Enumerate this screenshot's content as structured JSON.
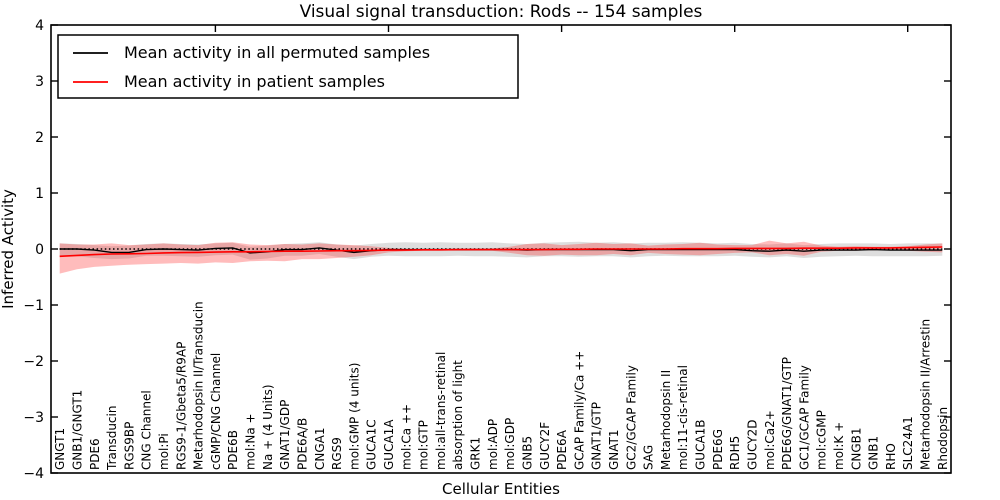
{
  "title": "Visual signal transduction: Rods -- 154 samples",
  "xlabel": "Cellular Entities",
  "ylabel": "Inferred Activity",
  "legend": {
    "items": [
      {
        "label": "Mean activity in all permuted samples",
        "color": "#000000"
      },
      {
        "label": "Mean activity in patient samples",
        "color": "#ff0000"
      }
    ]
  },
  "colors": {
    "permuted_line": "#000000",
    "patient_line": "#ff0000",
    "permuted_band": "#a0a0a0",
    "patient_band": "#ff2020",
    "reference_line": "#000000",
    "spine": "#000000",
    "background": "#ffffff"
  },
  "chart_data": {
    "type": "line",
    "title": "Visual signal transduction: Rods -- 154 samples",
    "xlabel": "Cellular Entities",
    "ylabel": "Inferred Activity",
    "ylim": [
      -4,
      4
    ],
    "yticks": [
      -4,
      -3,
      -2,
      -1,
      0,
      1,
      2,
      3,
      4
    ],
    "top_xticks": [
      10,
      20,
      30,
      40,
      50
    ],
    "grid": false,
    "legend_position": "upper left",
    "reference_line_y": 0,
    "categories": [
      "GNGT1",
      "GNB1/GNGT1",
      "PDE6",
      "Transducin",
      "RGS9BP",
      "CNG Channel",
      "mol:Pi",
      "RGS9-1/Gbeta5/R9AP",
      "Metarhodopsin II/Transducin",
      "cGMP/CNG Channel",
      "PDE6B",
      "mol:Na +",
      "Na + (4 Units)",
      "GNAT1/GDP",
      "PDE6A/B",
      "CNGA1",
      "RGS9",
      "mol:GMP (4 units)",
      "GUCA1C",
      "GUCA1A",
      "mol:Ca ++",
      "mol:GTP",
      "mol:all-trans-retinal",
      "absorption of light",
      "GRK1",
      "mol:ADP",
      "mol:GDP",
      "GNB5",
      "GUCY2F",
      "PDE6A",
      "GCAP Family/Ca ++",
      "GNAT1/GTP",
      "GNAT1",
      "GC2/GCAP Family",
      "SAG",
      "Metarhodopsin II",
      "mol:11-cis-retinal",
      "GUCA1B",
      "PDE6G",
      "RDH5",
      "GUCY2D",
      "mol:Ca2+",
      "PDE6G/GNAT1/GTP",
      "GC1/GCAP Family",
      "mol:cGMP",
      "mol:K +",
      "CNGB1",
      "GNB1",
      "RHO",
      "SLC24A1",
      "Metarhodopsin II/Arrestin",
      "Rhodopsin"
    ],
    "series": [
      {
        "name": "Mean activity in all permuted samples",
        "color": "#000000",
        "band_color": "#a0a0a0",
        "band_opacity": 0.35,
        "values": [
          0.0,
          0.0,
          -0.02,
          -0.06,
          -0.06,
          -0.01,
          0.0,
          -0.01,
          -0.02,
          0.01,
          0.02,
          -0.07,
          -0.05,
          -0.01,
          -0.01,
          0.02,
          -0.02,
          -0.06,
          -0.03,
          -0.01,
          -0.01,
          -0.01,
          -0.01,
          -0.01,
          -0.01,
          -0.01,
          -0.01,
          -0.02,
          -0.01,
          -0.01,
          -0.01,
          -0.01,
          -0.01,
          -0.03,
          -0.01,
          -0.01,
          -0.01,
          -0.01,
          -0.01,
          -0.01,
          -0.03,
          -0.04,
          -0.02,
          -0.04,
          -0.02,
          -0.02,
          -0.02,
          -0.01,
          -0.02,
          -0.02,
          -0.02,
          -0.02
        ],
        "band_upper": [
          0.1,
          0.09,
          0.07,
          0.05,
          0.06,
          0.09,
          0.1,
          0.09,
          0.08,
          0.1,
          0.11,
          0.04,
          0.06,
          0.09,
          0.1,
          0.12,
          0.08,
          0.06,
          0.09,
          0.11,
          0.12,
          0.11,
          0.12,
          0.11,
          0.11,
          0.12,
          0.1,
          0.09,
          0.11,
          0.12,
          0.13,
          0.11,
          0.12,
          0.1,
          0.11,
          0.11,
          0.12,
          0.11,
          0.1,
          0.11,
          0.09,
          0.08,
          0.1,
          0.07,
          0.09,
          0.1,
          0.1,
          0.1,
          0.09,
          0.1,
          0.1,
          0.1
        ],
        "band_lower": [
          -0.12,
          -0.13,
          -0.16,
          -0.18,
          -0.17,
          -0.12,
          -0.12,
          -0.13,
          -0.14,
          -0.11,
          -0.1,
          -0.19,
          -0.17,
          -0.12,
          -0.12,
          -0.09,
          -0.14,
          -0.18,
          -0.14,
          -0.12,
          -0.13,
          -0.13,
          -0.13,
          -0.12,
          -0.13,
          -0.13,
          -0.14,
          -0.15,
          -0.13,
          -0.13,
          -0.14,
          -0.13,
          -0.13,
          -0.15,
          -0.13,
          -0.12,
          -0.13,
          -0.13,
          -0.13,
          -0.12,
          -0.14,
          -0.15,
          -0.13,
          -0.16,
          -0.14,
          -0.13,
          -0.12,
          -0.13,
          -0.13,
          -0.13,
          -0.13,
          -0.12
        ]
      },
      {
        "name": "Mean activity in patient samples",
        "color": "#ff0000",
        "band_color": "#ff2020",
        "band_opacity": 0.3,
        "values": [
          -0.13,
          -0.115,
          -0.1,
          -0.09,
          -0.085,
          -0.08,
          -0.07,
          -0.065,
          -0.06,
          -0.055,
          -0.05,
          -0.05,
          -0.045,
          -0.04,
          -0.04,
          -0.035,
          -0.03,
          -0.03,
          -0.025,
          -0.02,
          -0.02,
          -0.015,
          -0.015,
          -0.01,
          -0.01,
          -0.01,
          -0.01,
          -0.01,
          -0.01,
          -0.005,
          -0.005,
          0.0,
          0.0,
          0.0,
          0.0,
          0.0,
          0.005,
          0.005,
          0.005,
          0.01,
          0.01,
          0.01,
          0.01,
          0.015,
          0.015,
          0.015,
          0.02,
          0.02,
          0.02,
          0.025,
          0.03,
          0.035
        ],
        "band_upper": [
          0.1,
          0.08,
          0.08,
          0.1,
          0.07,
          0.08,
          0.1,
          0.08,
          0.07,
          0.11,
          0.12,
          0.08,
          0.07,
          0.09,
          0.08,
          0.1,
          0.08,
          0.07,
          0.05,
          0.02,
          0.0,
          0.0,
          0.0,
          0.0,
          0.0,
          0.01,
          0.04,
          0.09,
          0.1,
          0.07,
          0.09,
          0.11,
          0.09,
          0.1,
          0.06,
          0.08,
          0.09,
          0.11,
          0.08,
          0.07,
          0.07,
          0.15,
          0.1,
          0.13,
          0.06,
          0.04,
          0.05,
          0.04,
          0.04,
          0.05,
          0.08,
          0.1
        ],
        "band_lower": [
          -0.44,
          -0.36,
          -0.32,
          -0.3,
          -0.28,
          -0.27,
          -0.26,
          -0.25,
          -0.26,
          -0.24,
          -0.25,
          -0.22,
          -0.21,
          -0.22,
          -0.18,
          -0.18,
          -0.16,
          -0.14,
          -0.11,
          -0.06,
          -0.04,
          -0.03,
          -0.03,
          -0.03,
          -0.03,
          -0.03,
          -0.07,
          -0.11,
          -0.12,
          -0.1,
          -0.11,
          -0.11,
          -0.09,
          -0.11,
          -0.07,
          -0.09,
          -0.1,
          -0.11,
          -0.09,
          -0.07,
          -0.06,
          -0.11,
          -0.09,
          -0.12,
          -0.05,
          -0.03,
          -0.03,
          -0.02,
          -0.02,
          -0.03,
          -0.05,
          -0.06
        ]
      }
    ]
  }
}
